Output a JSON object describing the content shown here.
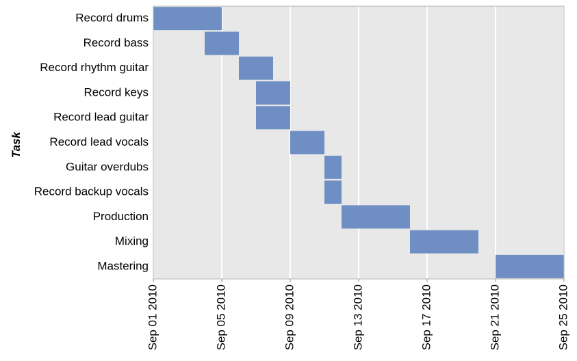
{
  "chart_data": {
    "type": "gantt",
    "title": "",
    "ylabel": "Task",
    "xlabel": "",
    "x_range": [
      "2010-09-01",
      "2010-09-25"
    ],
    "x_ticks": [
      {
        "date": "2010-09-01",
        "label": "Sep 01 2010"
      },
      {
        "date": "2010-09-05",
        "label": "Sep 05 2010"
      },
      {
        "date": "2010-09-09",
        "label": "Sep 09 2010"
      },
      {
        "date": "2010-09-13",
        "label": "Sep 13 2010"
      },
      {
        "date": "2010-09-17",
        "label": "Sep 17 2010"
      },
      {
        "date": "2010-09-21",
        "label": "Sep 21 2010"
      },
      {
        "date": "2010-09-25",
        "label": "Sep 25 2010"
      }
    ],
    "grid": true,
    "bar_color": "#6f8fc4",
    "background_color": "#e8e8e8",
    "tasks": [
      {
        "name": "Record drums",
        "start": "2010-09-01",
        "end": "2010-09-05"
      },
      {
        "name": "Record bass",
        "start": "2010-09-04",
        "end": "2010-09-06"
      },
      {
        "name": "Record rhythm guitar",
        "start": "2010-09-06",
        "end": "2010-09-08"
      },
      {
        "name": "Record keys",
        "start": "2010-09-07",
        "end": "2010-09-09"
      },
      {
        "name": "Record lead guitar",
        "start": "2010-09-07",
        "end": "2010-09-09"
      },
      {
        "name": "Record lead vocals",
        "start": "2010-09-09",
        "end": "2010-09-11"
      },
      {
        "name": "Guitar overdubs",
        "start": "2010-09-11",
        "end": "2010-09-12"
      },
      {
        "name": "Record backup vocals",
        "start": "2010-09-11",
        "end": "2010-09-12"
      },
      {
        "name": "Production",
        "start": "2010-09-12",
        "end": "2010-09-16"
      },
      {
        "name": "Mixing",
        "start": "2010-09-16",
        "end": "2010-09-20"
      },
      {
        "name": "Mastering",
        "start": "2010-09-21",
        "end": "2010-09-25"
      }
    ]
  }
}
